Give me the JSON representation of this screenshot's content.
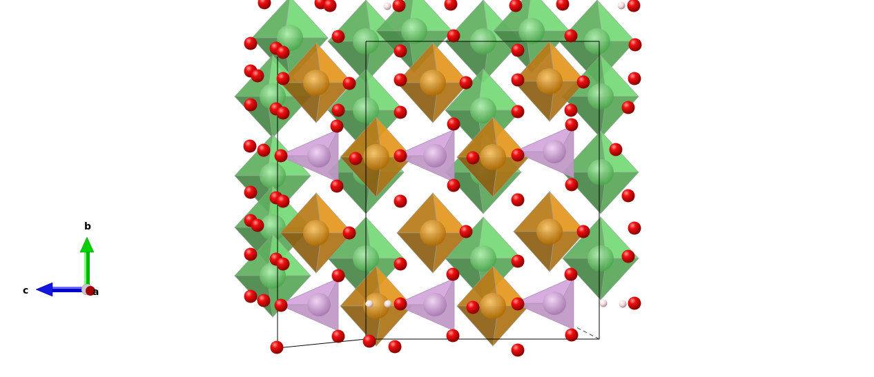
{
  "structure": {
    "polyhedra_colors": {
      "green_octahedron": "#6fcf6f",
      "orange_octahedron": "#d9901c",
      "violet_tetrahedron": "#c9a0d0"
    },
    "atom_colors": {
      "oxygen": "#e00000",
      "hydrogen": "#f0d8d8"
    },
    "unit_cell_edge_color": "#000000"
  },
  "axes": {
    "b_label": "b",
    "c_label": "c",
    "a_label": "a",
    "b_color": "#00c000",
    "c_color": "#1010e0",
    "a_color": "#b00000"
  }
}
